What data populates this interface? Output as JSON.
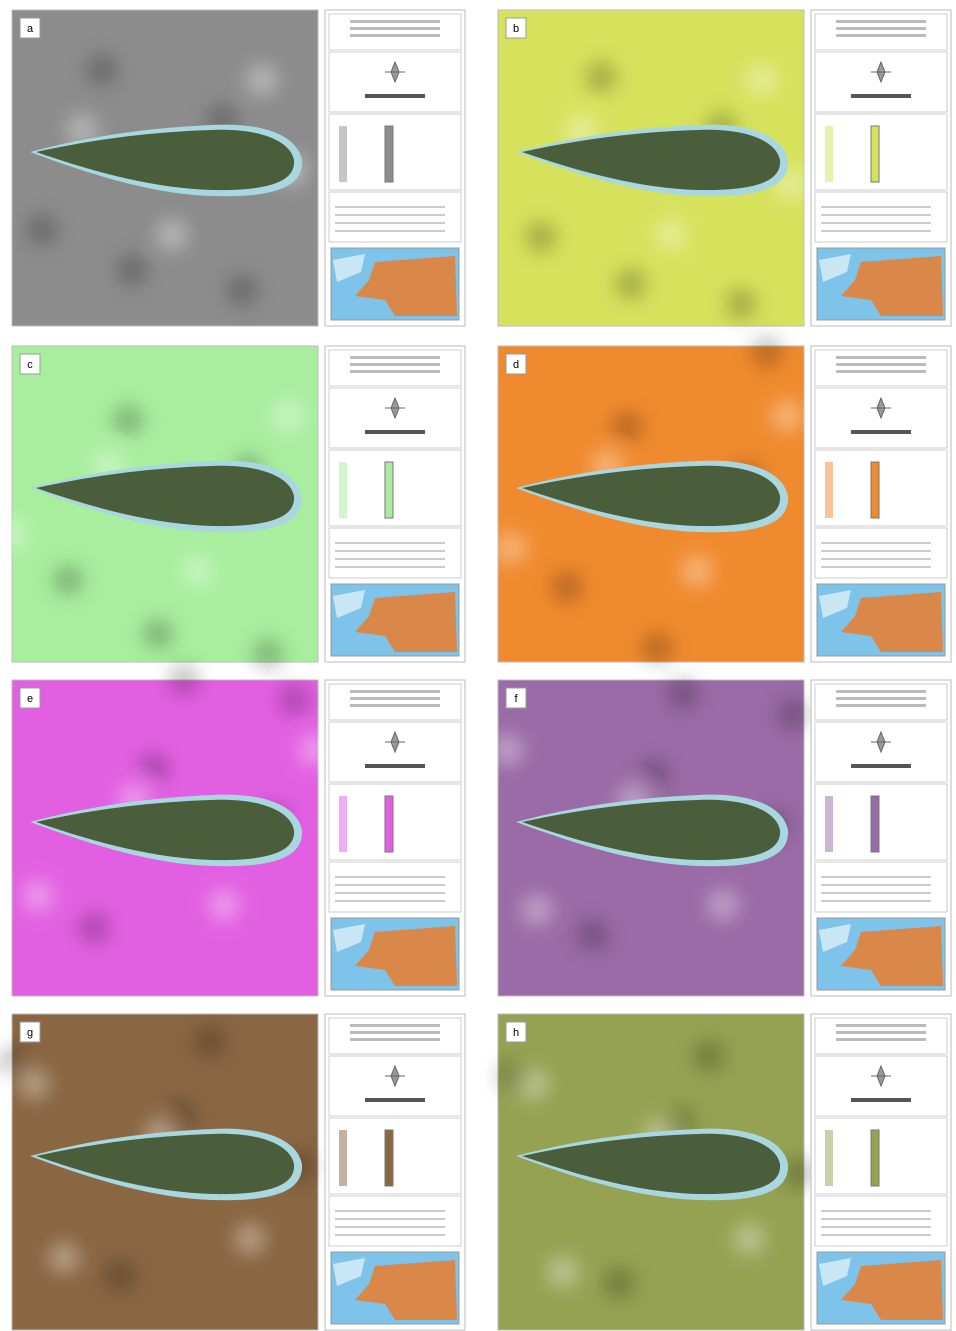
{
  "panels": [
    {
      "label": "a",
      "color": "#8c8c8c"
    },
    {
      "label": "b",
      "color": "#d6e25c"
    },
    {
      "label": "c",
      "color": "#a8ee9e"
    },
    {
      "label": "d",
      "color": "#f08a2e"
    },
    {
      "label": "e",
      "color": "#e25fe2"
    },
    {
      "label": "f",
      "color": "#9a6ba6"
    },
    {
      "label": "g",
      "color": "#8a6642"
    },
    {
      "label": "h",
      "color": "#95a252"
    }
  ]
}
